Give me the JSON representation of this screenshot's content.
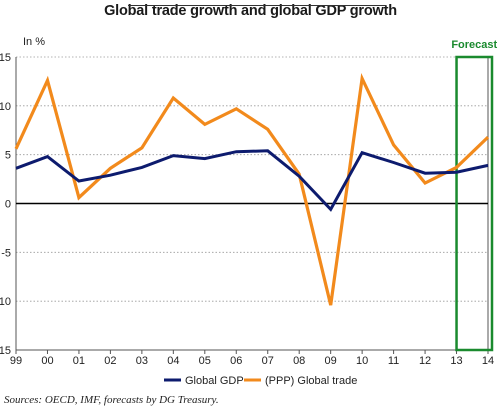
{
  "chart_data": {
    "type": "line",
    "title": "Global trade growth and global GDP growth",
    "ylabel": "In %",
    "xlabel": "",
    "ylim": [
      -15,
      15
    ],
    "yticks": [
      -15,
      -10,
      -5,
      0,
      5,
      10,
      15
    ],
    "ytick_labels": [
      "-15",
      "-10",
      "-5",
      "0",
      "5",
      "10",
      "15"
    ],
    "categories": [
      "99",
      "00",
      "01",
      "02",
      "03",
      "04",
      "05",
      "06",
      "07",
      "08",
      "09",
      "10",
      "11",
      "12",
      "13",
      "14"
    ],
    "series": [
      {
        "name": "Global GDP",
        "color": "#0d1b6e",
        "values": [
          3.6,
          4.8,
          2.3,
          2.9,
          3.7,
          4.9,
          4.6,
          5.3,
          5.4,
          2.8,
          -0.6,
          5.2,
          4.2,
          3.1,
          3.2,
          3.9
        ]
      },
      {
        "name": "(PPP) Global trade",
        "color": "#f28a1c",
        "values": [
          5.6,
          12.6,
          0.6,
          3.6,
          5.7,
          10.8,
          8.1,
          9.7,
          7.6,
          3.0,
          -10.4,
          12.8,
          6.0,
          2.1,
          3.7,
          6.8
        ]
      }
    ],
    "forecast": {
      "label": "Forecast",
      "from_category": "13",
      "to_category": "14",
      "color": "#1a8a2e"
    },
    "grid": "horizontal-dotted",
    "legend": "bottom-center"
  },
  "source": "Sources: OECD, IMF, forecasts by DG Treasury."
}
